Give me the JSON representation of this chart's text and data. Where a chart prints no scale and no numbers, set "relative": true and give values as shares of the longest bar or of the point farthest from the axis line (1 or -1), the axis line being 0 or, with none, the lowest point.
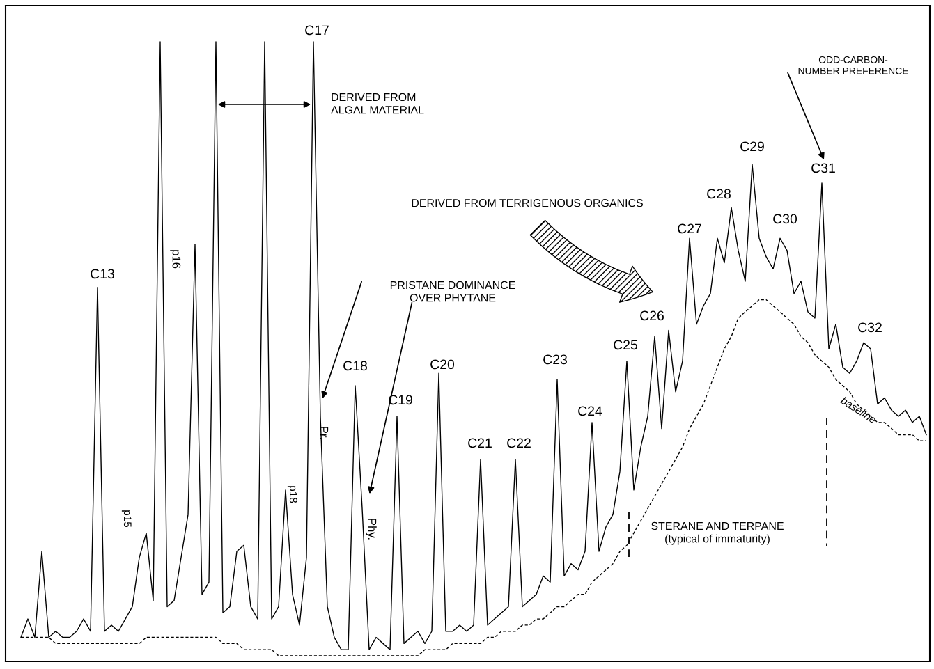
{
  "chart_data": {
    "type": "line",
    "relative": true,
    "categories": [
      null,
      null,
      null,
      null,
      null,
      null,
      null,
      null,
      null,
      null,
      null,
      null,
      null,
      null,
      null,
      null,
      null,
      null,
      null,
      null,
      null,
      null,
      null,
      null,
      null,
      null,
      null,
      null,
      null,
      null,
      null,
      null,
      null,
      null,
      null,
      null,
      null,
      null,
      null,
      null,
      null,
      null,
      null,
      null,
      null,
      null,
      null,
      null,
      null,
      null,
      null,
      null,
      null,
      null,
      null,
      null,
      null,
      null,
      null,
      null,
      null,
      null,
      null,
      null,
      null,
      null,
      null,
      null,
      null,
      null,
      null,
      null,
      null,
      null,
      null,
      null,
      null,
      null,
      null,
      null,
      null,
      null,
      null,
      null,
      null,
      null,
      null,
      null,
      null,
      null,
      null,
      null,
      null,
      null,
      null,
      null,
      null,
      null,
      null,
      null,
      null,
      null,
      null,
      null,
      null,
      null,
      null,
      null,
      null,
      null,
      null,
      null,
      null,
      null,
      null,
      null,
      null,
      null,
      null,
      null,
      null,
      null,
      null,
      null,
      null,
      null,
      null,
      null,
      null,
      null,
      null
    ],
    "series": [
      {
        "color": "#000000",
        "line_style": "solid",
        "values": [
          0.03,
          0.06,
          0.03,
          0.17,
          0.03,
          0.04,
          0.03,
          0.03,
          0.04,
          0.06,
          0.04,
          0.6,
          0.04,
          0.05,
          0.04,
          0.06,
          0.08,
          0.16,
          0.2,
          0.09,
          1,
          0.08,
          0.09,
          0.16,
          0.23,
          0.67,
          0.1,
          0.12,
          1,
          0.07,
          0.08,
          0.17,
          0.18,
          0.08,
          0.06,
          1,
          0.06,
          0.08,
          0.27,
          0.1,
          0.05,
          0.16,
          1,
          0.39,
          0.08,
          0.03,
          0.01,
          0.01,
          0.44,
          0.24,
          0.01,
          0.03,
          0.02,
          0.01,
          0.39,
          0.02,
          0.03,
          0.04,
          0.02,
          0.04,
          0.46,
          0.04,
          0.04,
          0.05,
          0.04,
          0.05,
          0.32,
          0.05,
          0.06,
          0.07,
          0.08,
          0.32,
          0.08,
          0.09,
          0.1,
          0.13,
          0.12,
          0.45,
          0.13,
          0.15,
          0.14,
          0.17,
          0.38,
          0.17,
          0.21,
          0.23,
          0.3,
          0.48,
          0.27,
          0.34,
          0.39,
          0.52,
          0.37,
          0.53,
          0.43,
          0.48,
          0.68,
          0.54,
          0.57,
          0.59,
          0.68,
          0.64,
          0.73,
          0.66,
          0.61,
          0.8,
          0.68,
          0.65,
          0.63,
          0.68,
          0.66,
          0.59,
          0.61,
          0.56,
          0.55,
          0.77,
          0.5,
          0.54,
          0.47,
          0.46,
          0.48,
          0.51,
          0.5,
          0.41,
          0.42,
          0.4,
          0.39,
          0.4,
          0.38,
          0.39,
          0.36
        ]
      },
      {
        "name": "baseline",
        "color": "#000000",
        "line_style": "dashed",
        "values": [
          0.03,
          0.03,
          0.03,
          0.03,
          0.03,
          0.02,
          0.02,
          0.02,
          0.02,
          0.02,
          0.02,
          0.02,
          0.02,
          0.02,
          0.02,
          0.02,
          0.02,
          0.02,
          0.03,
          0.03,
          0.03,
          0.03,
          0.03,
          0.03,
          0.03,
          0.03,
          0.03,
          0.03,
          0.03,
          0.02,
          0.02,
          0.02,
          0.01,
          0.01,
          0.01,
          0.01,
          0.01,
          0.0,
          0.0,
          0.0,
          0.0,
          0.0,
          0.0,
          0.0,
          0.0,
          0.0,
          0.0,
          0.0,
          0.0,
          0.0,
          0.0,
          0.0,
          0.0,
          0.0,
          0.0,
          0.0,
          0.0,
          0.0,
          0.01,
          0.01,
          0.01,
          0.01,
          0.02,
          0.02,
          0.02,
          0.02,
          0.02,
          0.03,
          0.03,
          0.04,
          0.04,
          0.04,
          0.05,
          0.05,
          0.06,
          0.06,
          0.07,
          0.08,
          0.08,
          0.09,
          0.1,
          0.1,
          0.12,
          0.13,
          0.14,
          0.15,
          0.17,
          0.18,
          0.2,
          0.22,
          0.24,
          0.26,
          0.28,
          0.3,
          0.32,
          0.34,
          0.37,
          0.39,
          0.41,
          0.44,
          0.47,
          0.5,
          0.52,
          0.55,
          0.56,
          0.57,
          0.58,
          0.58,
          0.57,
          0.56,
          0.55,
          0.54,
          0.52,
          0.51,
          0.49,
          0.48,
          0.47,
          0.45,
          0.44,
          0.43,
          0.41,
          0.4,
          0.39,
          0.38,
          0.38,
          0.37,
          0.36,
          0.36,
          0.36,
          0.35,
          0.35
        ]
      }
    ],
    "annotations": [
      "C13",
      "p15",
      "p16",
      "C17",
      "DERIVED FROM\nALGAL MATERIAL",
      "PRISTANE DOMINANCE\nOVER PHYTANE",
      "Pr.",
      "p18",
      "Phy.",
      "C18",
      "C19",
      "C20",
      "C21",
      "C22",
      "C23",
      "C24",
      "C25",
      "C26",
      "C27",
      "C28",
      "C29",
      "C30",
      "C31",
      "C32",
      "DERIVED FROM TERRIGENOUS ORGANICS",
      "ODD-CARBON-\nNUMBER PREFERENCE",
      "STERANE AND TERPANE\n(typical of immaturity)"
    ]
  }
}
